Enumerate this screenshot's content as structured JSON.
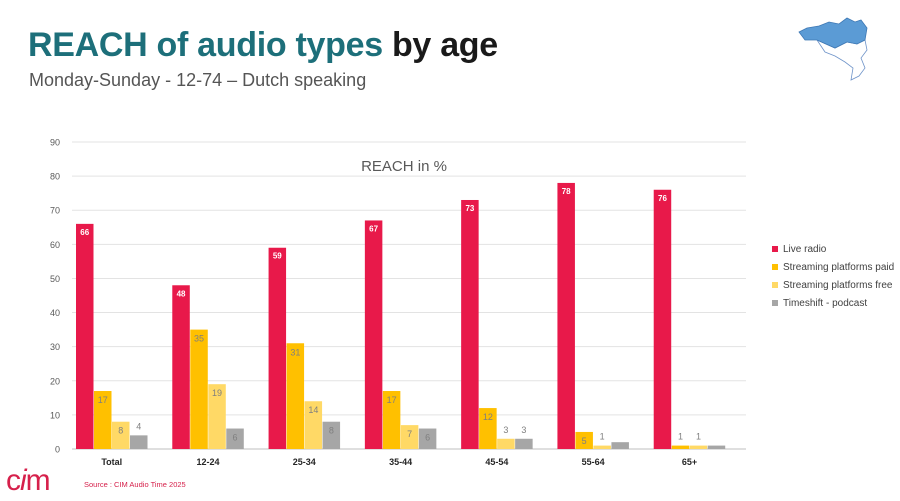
{
  "slide": {
    "title_part1": "REACH of audio types",
    "title_part2": "by age",
    "subtitle": "Monday-Sunday - 12-74 – Dutch speaking",
    "source": "Source : CIM Audio Time 2025",
    "logo_text": "CIM",
    "map_icon": "belgium-map-flanders-highlighted",
    "colors": {
      "title_teal": "#1d6f7a",
      "live_radio": "#e8194a",
      "streaming_paid": "#ffc000",
      "streaming_free": "#ffd966",
      "timeshift": "#a6a6a6",
      "map_flanders": "#5b9bd5"
    }
  },
  "chart_data": {
    "type": "bar",
    "title": "REACH in %",
    "categories": [
      "Total",
      "12-24",
      "25-34",
      "35-44",
      "45-54",
      "55-64",
      "65+"
    ],
    "series": [
      {
        "name": "Live radio",
        "values": [
          66,
          48,
          59,
          67,
          73,
          78,
          76
        ],
        "labels": [
          "66",
          "48",
          "59",
          "67",
          "73",
          "78",
          "76"
        ],
        "color": "#e8194a"
      },
      {
        "name": "Streaming platforms paid",
        "values": [
          17,
          35,
          31,
          17,
          12,
          5,
          1
        ],
        "labels": [
          "17",
          "35",
          "31",
          "17",
          "12",
          "5",
          "1"
        ],
        "color": "#ffc000"
      },
      {
        "name": "Streaming platforms free",
        "values": [
          8,
          19,
          14,
          7,
          3,
          1,
          1
        ],
        "labels": [
          "8",
          "19",
          "14",
          "7",
          "3",
          "1",
          "1"
        ],
        "color": "#ffd966"
      },
      {
        "name": "Timeshift - podcast",
        "values": [
          4,
          6,
          8,
          6,
          3,
          2,
          1
        ],
        "labels": [
          "4",
          "6",
          "8",
          "6",
          "3",
          "",
          ""
        ],
        "color": "#a6a6a6"
      }
    ],
    "ylim": [
      0,
      90
    ],
    "yticks": [
      0,
      10,
      20,
      30,
      40,
      50,
      60,
      70,
      80,
      90
    ],
    "grid": true,
    "legend": "right",
    "xlabel": "",
    "ylabel": ""
  }
}
